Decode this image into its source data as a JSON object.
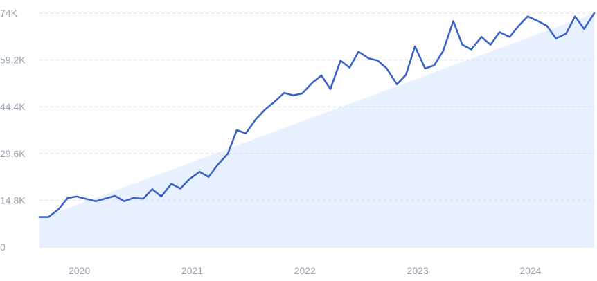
{
  "chart_data": {
    "type": "line",
    "title": "",
    "xlabel": "",
    "ylabel": "",
    "ylim": [
      0,
      74000
    ],
    "y_ticks": [
      0,
      14800,
      29600,
      44400,
      59200,
      74000
    ],
    "y_tick_labels": [
      "0",
      "14.8K",
      "29.6K",
      "44.4K",
      "59.2K",
      "74K"
    ],
    "x_ticks": [
      2020,
      2021,
      2022,
      2023,
      2024
    ],
    "x_tick_labels": [
      "2020",
      "2021",
      "2022",
      "2023",
      "2024"
    ],
    "xlim": [
      2019.75,
      2024.67
    ],
    "grid": true,
    "colors": {
      "line": "#3b62c4",
      "trend": "#e6efff",
      "grid": "#d9dde5",
      "text": "#9aa3b2"
    },
    "trend": {
      "x": [
        2019.75,
        2024.67
      ],
      "y": [
        9000,
        74000
      ]
    },
    "series": [
      {
        "x": [
          2019.75,
          2019.83,
          2019.92,
          2020.0,
          2020.08,
          2020.17,
          2020.25,
          2020.33,
          2020.42,
          2020.5,
          2020.58,
          2020.67,
          2020.75,
          2020.83,
          2020.92,
          2021.0,
          2021.08,
          2021.17,
          2021.25,
          2021.33,
          2021.42,
          2021.5,
          2021.58,
          2021.67,
          2021.75,
          2021.83,
          2021.92,
          2022.0,
          2022.08,
          2022.17,
          2022.25,
          2022.33,
          2022.42,
          2022.5,
          2022.58,
          2022.67,
          2022.75,
          2022.83,
          2022.92,
          2023.0,
          2023.08,
          2023.17,
          2023.25,
          2023.33,
          2023.42,
          2023.5,
          2023.58,
          2023.67,
          2023.75,
          2023.83,
          2023.92,
          2024.0,
          2024.08,
          2024.17,
          2024.25,
          2024.33,
          2024.42,
          2024.5,
          2024.58,
          2024.67
        ],
        "values": [
          9500,
          9500,
          12000,
          15500,
          16000,
          15200,
          14500,
          15300,
          16200,
          14500,
          15500,
          15300,
          18300,
          16000,
          20000,
          18500,
          21500,
          23800,
          22200,
          26000,
          29500,
          37000,
          36000,
          40500,
          43500,
          45800,
          48800,
          48000,
          48600,
          52000,
          54300,
          50000,
          59000,
          56800,
          61800,
          59700,
          59000,
          56500,
          51500,
          54500,
          63500,
          56500,
          57500,
          62000,
          71500,
          64000,
          62500,
          66500,
          64000,
          68000,
          66500,
          70000,
          73000,
          71500,
          70000,
          66000,
          67500,
          73000,
          69000,
          74000
        ]
      }
    ]
  }
}
